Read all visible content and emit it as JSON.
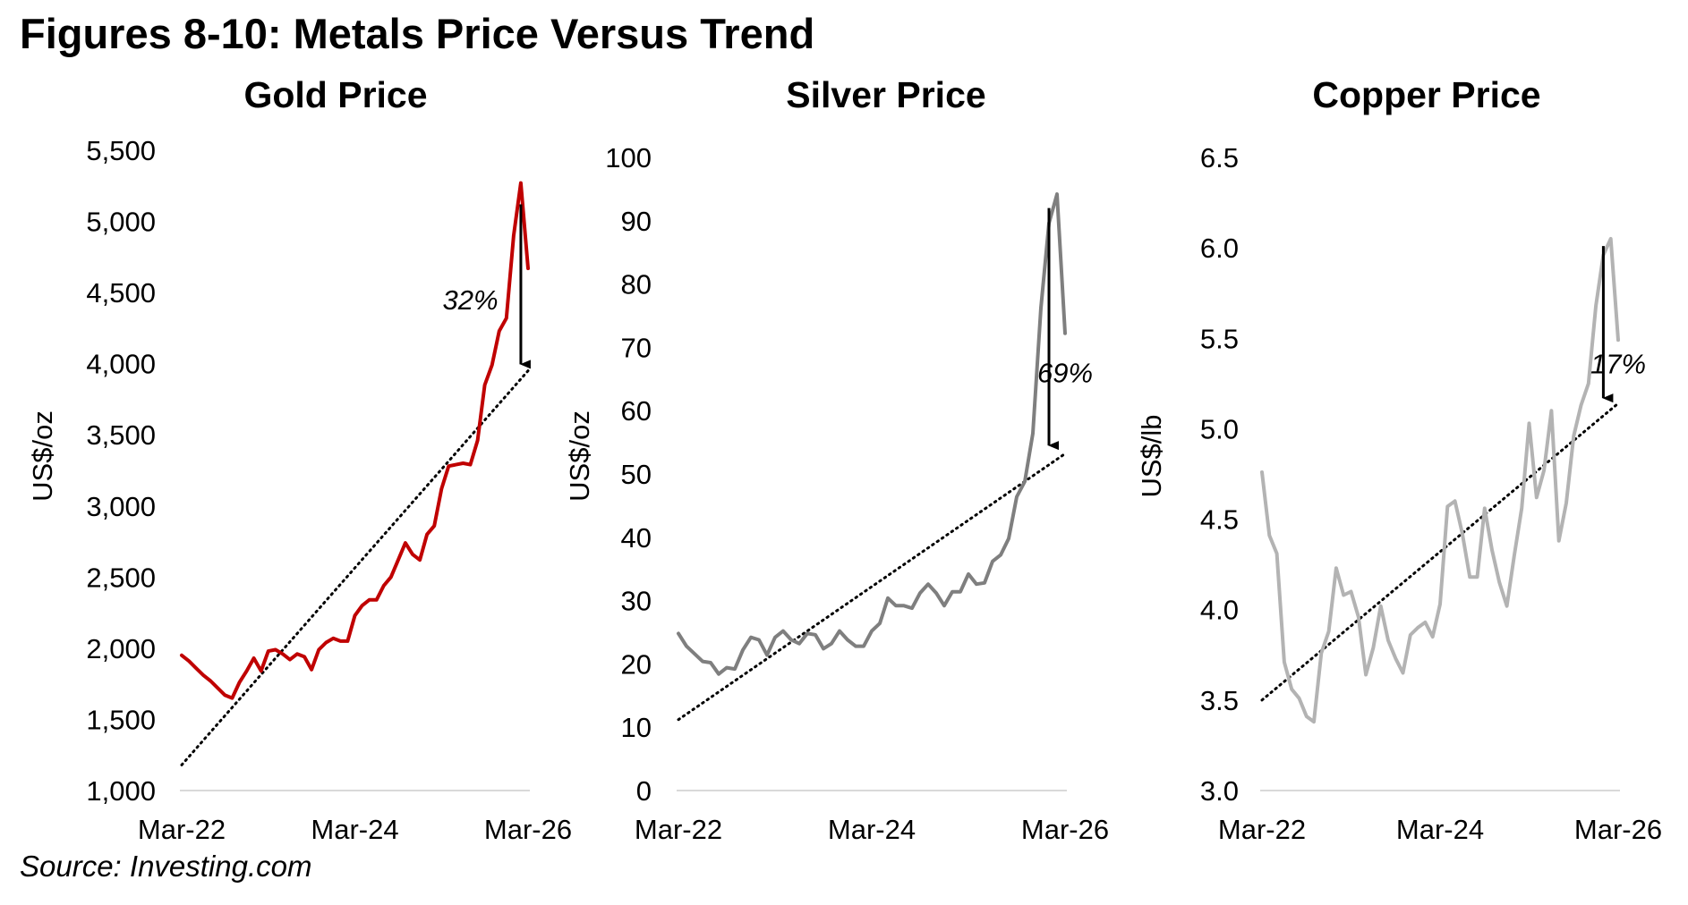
{
  "figure": {
    "title": "Figures 8-10: Metals Price Versus Trend",
    "source": "Source: Investing.com"
  },
  "chart_data": [
    {
      "type": "line",
      "title": "Gold Price",
      "xlabel": "",
      "ylabel": "US$/oz",
      "ylim": [
        1000,
        5500
      ],
      "yticks": [
        1000,
        1500,
        2000,
        2500,
        3000,
        3500,
        4000,
        4500,
        5000,
        5500
      ],
      "ytick_labels": [
        "1,000",
        "1,500",
        "2,000",
        "2,500",
        "3,000",
        "3,500",
        "4,000",
        "4,500",
        "5,000",
        "5,500"
      ],
      "xlim": [
        0,
        48
      ],
      "xtick_labels": [
        {
          "x": 0,
          "label": "Mar-22"
        },
        {
          "x": 24,
          "label": "Mar-24"
        },
        {
          "x": 48,
          "label": "Mar-26"
        }
      ],
      "series": [
        {
          "name": "Gold",
          "color": "#c00000",
          "x": [
            0,
            1,
            2,
            3,
            4,
            5,
            6,
            7,
            8,
            9,
            10,
            11,
            12,
            13,
            14,
            15,
            16,
            17,
            18,
            19,
            20,
            21,
            22,
            23,
            24,
            25,
            26,
            27,
            28,
            29,
            30,
            31,
            32,
            33,
            34,
            35,
            36,
            37,
            38,
            39,
            40,
            41,
            42,
            43,
            44,
            45,
            46,
            47,
            48
          ],
          "values": [
            1950,
            1910,
            1860,
            1810,
            1770,
            1720,
            1670,
            1650,
            1760,
            1840,
            1930,
            1840,
            1980,
            1990,
            1960,
            1920,
            1960,
            1940,
            1850,
            1990,
            2040,
            2070,
            2050,
            2050,
            2230,
            2300,
            2340,
            2340,
            2440,
            2500,
            2620,
            2740,
            2660,
            2620,
            2800,
            2860,
            3120,
            3280,
            3290,
            3300,
            3290,
            3460,
            3850,
            3990,
            4230,
            4320,
            4900,
            5270,
            4670
          ]
        }
      ],
      "trend": {
        "x": [
          0,
          48
        ],
        "values": [
          1180,
          3950
        ]
      },
      "annotation": {
        "label": "32%",
        "x": 47,
        "y_from": 5120,
        "y_to": 3920,
        "label_x": 40,
        "label_y": 4450
      }
    },
    {
      "type": "line",
      "title": "Silver Price",
      "xlabel": "",
      "ylabel": "US$/oz",
      "ylim": [
        0,
        100
      ],
      "yticks": [
        0,
        10,
        20,
        30,
        40,
        50,
        60,
        70,
        80,
        90,
        100
      ],
      "ytick_labels": [
        "0",
        "10",
        "20",
        "30",
        "40",
        "50",
        "60",
        "70",
        "80",
        "90",
        "100"
      ],
      "xlim": [
        0,
        48
      ],
      "xtick_labels": [
        {
          "x": 0,
          "label": "Mar-22"
        },
        {
          "x": 24,
          "label": "Mar-24"
        },
        {
          "x": 48,
          "label": "Mar-26"
        }
      ],
      "series": [
        {
          "name": "Silver",
          "color": "#7f7f7f",
          "x": [
            0,
            1,
            2,
            3,
            4,
            5,
            6,
            7,
            8,
            9,
            10,
            11,
            12,
            13,
            14,
            15,
            16,
            17,
            18,
            19,
            20,
            21,
            22,
            23,
            24,
            25,
            26,
            27,
            28,
            29,
            30,
            31,
            32,
            33,
            34,
            35,
            36,
            37,
            38,
            39,
            40,
            41,
            42,
            43,
            44,
            45,
            46,
            47,
            48
          ],
          "values": [
            24.8,
            22.8,
            21.6,
            20.4,
            20.2,
            18.4,
            19.4,
            19.2,
            22.2,
            24.2,
            23.8,
            21.4,
            24.2,
            25.2,
            23.8,
            23.2,
            24.8,
            24.6,
            22.4,
            23.2,
            25.2,
            23.8,
            22.8,
            22.8,
            25.2,
            26.4,
            30.4,
            29.2,
            29.2,
            28.8,
            31.2,
            32.6,
            31.2,
            29.2,
            31.4,
            31.4,
            34.2,
            32.6,
            32.8,
            36.2,
            37.2,
            39.8,
            46.4,
            48.8,
            56.4,
            76.2,
            89.6,
            94.2,
            72.2
          ]
        }
      ],
      "trend": {
        "x": [
          0,
          48
        ],
        "values": [
          11.2,
          53.2
        ]
      },
      "annotation": {
        "label": "69%",
        "x": 46,
        "y_from": 92,
        "y_to": 52.8,
        "label_x": 48,
        "label_y": 66
      }
    },
    {
      "type": "line",
      "title": "Copper Price",
      "xlabel": "",
      "ylabel": "US$/lb",
      "ylim": [
        3.0,
        6.5
      ],
      "yticks": [
        3.0,
        3.5,
        4.0,
        4.5,
        5.0,
        5.5,
        6.0,
        6.5
      ],
      "ytick_labels": [
        "3.0",
        "3.5",
        "4.0",
        "4.5",
        "5.0",
        "5.5",
        "6.0",
        "6.5"
      ],
      "xlim": [
        0,
        48
      ],
      "xtick_labels": [
        {
          "x": 0,
          "label": "Mar-22"
        },
        {
          "x": 24,
          "label": "Mar-24"
        },
        {
          "x": 48,
          "label": "Mar-26"
        }
      ],
      "series": [
        {
          "name": "Copper",
          "color": "#b3b3b3",
          "x": [
            0,
            1,
            2,
            3,
            4,
            5,
            6,
            7,
            8,
            9,
            10,
            11,
            12,
            13,
            14,
            15,
            16,
            17,
            18,
            19,
            20,
            21,
            22,
            23,
            24,
            25,
            26,
            27,
            28,
            29,
            30,
            31,
            32,
            33,
            34,
            35,
            36,
            37,
            38,
            39,
            40,
            41,
            42,
            43,
            44,
            45,
            46,
            47,
            48
          ],
          "values": [
            4.76,
            4.41,
            4.31,
            3.71,
            3.56,
            3.51,
            3.41,
            3.38,
            3.76,
            3.88,
            4.23,
            4.08,
            4.1,
            3.96,
            3.64,
            3.79,
            4.02,
            3.83,
            3.73,
            3.65,
            3.86,
            3.9,
            3.93,
            3.85,
            4.03,
            4.57,
            4.6,
            4.42,
            4.18,
            4.18,
            4.56,
            4.33,
            4.15,
            4.02,
            4.3,
            4.56,
            5.03,
            4.62,
            4.77,
            5.1,
            4.38,
            4.59,
            4.96,
            5.13,
            5.25,
            5.68,
            5.96,
            6.05,
            5.49
          ]
        }
      ],
      "trend": {
        "x": [
          0,
          48
        ],
        "values": [
          3.5,
          5.14
        ]
      },
      "annotation": {
        "label": "17%",
        "x": 46,
        "y_from": 6.01,
        "y_to": 5.11,
        "label_x": 48,
        "label_y": 5.36
      }
    }
  ],
  "colors": {
    "axis": "#d9d9d9",
    "trend": "#000000",
    "arrow": "#000000"
  }
}
